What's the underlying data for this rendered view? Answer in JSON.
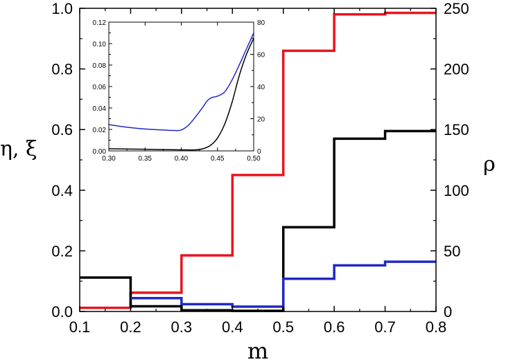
{
  "chart_data": {
    "type": "line",
    "main": {
      "xlabel": "m",
      "ylabel_left": "η, ξ",
      "ylabel_right": "ρ",
      "xlim": [
        0.1,
        0.8
      ],
      "ylim_left": [
        0.0,
        1.0
      ],
      "ylim_right": [
        0,
        250
      ],
      "x_ticks": [
        0.1,
        0.2,
        0.3,
        0.4,
        0.5,
        0.6,
        0.7,
        0.8
      ],
      "x_tick_labels": [
        "0.1",
        "0.2",
        "0.3",
        "0.4",
        "0.5",
        "0.6",
        "0.7",
        "0.8"
      ],
      "y_left_ticks": [
        0.0,
        0.2,
        0.4,
        0.6,
        0.8,
        1.0
      ],
      "y_left_tick_labels": [
        "0.0",
        "0.2",
        "0.4",
        "0.6",
        "0.8",
        "1.0"
      ],
      "y_right_ticks": [
        0,
        50,
        100,
        150,
        200,
        250
      ],
      "y_right_tick_labels": [
        "0",
        "50",
        "100",
        "150",
        "200",
        "250"
      ],
      "grid": false,
      "series": [
        {
          "color": "#e8141e",
          "axis": "left",
          "step": true,
          "x": [
            0.1,
            0.2,
            0.3,
            0.4,
            0.5,
            0.6,
            0.7,
            0.8
          ],
          "values": [
            0.012,
            0.062,
            0.185,
            0.45,
            0.86,
            0.98,
            0.985,
            0.985
          ]
        },
        {
          "color": "#000000",
          "axis": "left",
          "step": true,
          "x": [
            0.1,
            0.2,
            0.3,
            0.4,
            0.5,
            0.6,
            0.7,
            0.8
          ],
          "values": [
            0.112,
            0.017,
            0.004,
            0.002,
            0.278,
            0.57,
            0.595,
            0.635
          ]
        },
        {
          "color": "#1f28c8",
          "axis": "right",
          "step": true,
          "x": [
            0.2,
            0.3,
            0.4,
            0.5,
            0.6,
            0.7,
            0.8
          ],
          "values": [
            11,
            6,
            4,
            27,
            38,
            41,
            41
          ]
        }
      ]
    },
    "inset": {
      "xlim": [
        0.3,
        0.5
      ],
      "ylim_left": [
        0.0,
        0.12
      ],
      "ylim_right": [
        0,
        80
      ],
      "x_ticks": [
        0.3,
        0.35,
        0.4,
        0.45,
        0.5
      ],
      "x_tick_labels": [
        "0.30",
        "0.35",
        "0.40",
        "0.45",
        "0.50"
      ],
      "y_left_ticks": [
        0.0,
        0.02,
        0.04,
        0.06,
        0.08,
        0.1,
        0.12
      ],
      "y_left_tick_labels": [
        "0.00",
        "0.02",
        "0.04",
        "0.06",
        "0.08",
        "0.10",
        "0.12"
      ],
      "y_right_ticks": [
        0,
        20,
        40,
        60,
        80
      ],
      "y_right_tick_labels": [
        "0",
        "20",
        "40",
        "60",
        "80"
      ],
      "series": [
        {
          "color": "#1f28c8",
          "x": [
            0.3,
            0.32,
            0.34,
            0.36,
            0.38,
            0.39,
            0.4,
            0.41,
            0.42,
            0.43,
            0.435,
            0.44,
            0.445,
            0.45,
            0.46,
            0.47,
            0.48,
            0.49,
            0.5
          ],
          "values": [
            0.0245,
            0.0225,
            0.021,
            0.02,
            0.0193,
            0.019,
            0.0195,
            0.024,
            0.032,
            0.041,
            0.046,
            0.049,
            0.0502,
            0.051,
            0.055,
            0.066,
            0.08,
            0.095,
            0.11
          ]
        },
        {
          "color": "#000000",
          "x": [
            0.3,
            0.35,
            0.4,
            0.42,
            0.43,
            0.44,
            0.45,
            0.46,
            0.47,
            0.48,
            0.49,
            0.5
          ],
          "values": [
            0.002,
            0.0015,
            0.001,
            0.001,
            0.002,
            0.005,
            0.012,
            0.025,
            0.045,
            0.07,
            0.09,
            0.105
          ]
        }
      ]
    }
  }
}
